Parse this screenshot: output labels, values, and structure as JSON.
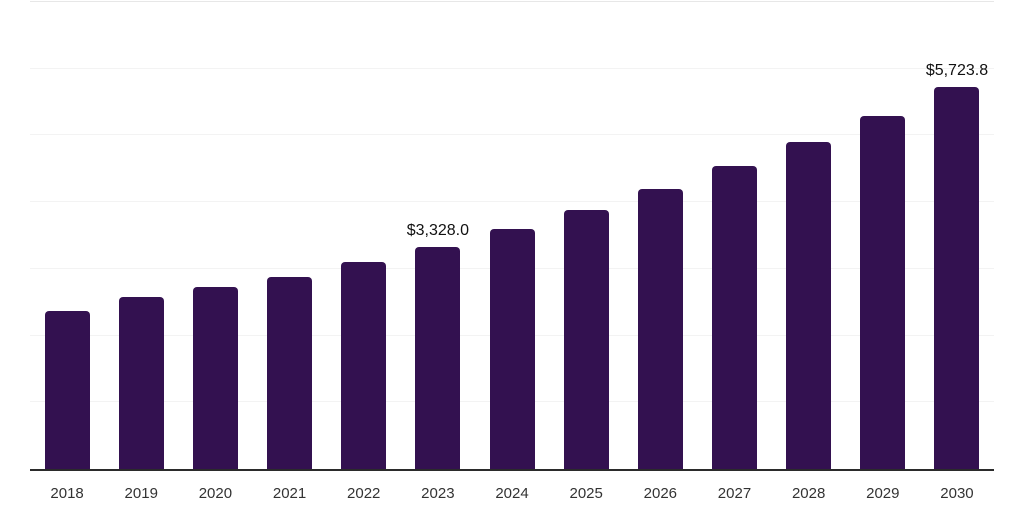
{
  "chart_data": {
    "type": "bar",
    "title": "",
    "xlabel": "",
    "ylabel": "",
    "categories": [
      "2018",
      "2019",
      "2020",
      "2021",
      "2022",
      "2023",
      "2024",
      "2025",
      "2026",
      "2027",
      "2028",
      "2029",
      "2030"
    ],
    "values": [
      2373.0,
      2582.0,
      2722.0,
      2872.0,
      3096.0,
      3328.0,
      3596.1,
      3886.0,
      4199.0,
      4537.3,
      4902.8,
      5297.8,
      5723.8
    ],
    "point_labels": [
      "",
      "",
      "",
      "",
      "",
      "$3,328.0",
      "",
      "",
      "",
      "",
      "",
      "",
      "$5,723.8"
    ],
    "value_prefix": "$",
    "ylim": [
      0,
      7000
    ],
    "grid_step": 1000,
    "grid": "horizontal",
    "y_axis_tick_labels_visible": false,
    "legend": "none",
    "colors": {
      "bar": "#331150",
      "axis_line": "#2b2b2b",
      "gridline": "#f3f3f3",
      "plot_top_border": "#e7e7e7",
      "tick_label": "#333333",
      "point_label": "#111111",
      "background": "#ffffff"
    }
  }
}
